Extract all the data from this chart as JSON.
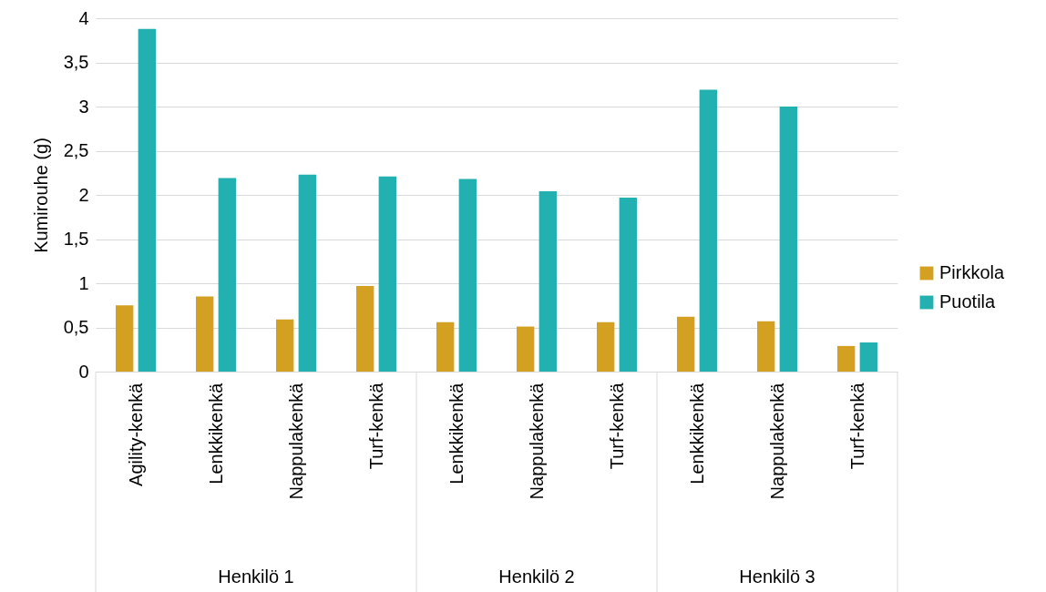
{
  "chart_data": {
    "type": "bar",
    "ylabel": "Kumirouhe (g)",
    "categories": [
      "Agility-kenkä",
      "Lenkkikenkä",
      "Nappulakenkä",
      "Turf-kenkä",
      "Lenkkikenkä",
      "Nappulakenkä",
      "Turf-kenkä",
      "Lenkkikenkä",
      "Nappulakenkä",
      "Turf-kenkä"
    ],
    "series": [
      {
        "name": "Pirkkola",
        "color": "#d4a021",
        "values": [
          0.75,
          0.85,
          0.59,
          0.97,
          0.56,
          0.51,
          0.56,
          0.62,
          0.57,
          0.29
        ]
      },
      {
        "name": "Puotila",
        "color": "#23b0b0",
        "values": [
          3.88,
          2.19,
          2.23,
          2.21,
          2.18,
          2.04,
          1.97,
          3.19,
          3.0,
          0.33
        ]
      }
    ],
    "annotations": [
      "Henkilö 1",
      "Henkilö 2",
      "Henkilö 3"
    ],
    "ylim": [
      0,
      4
    ],
    "yticks": [
      0,
      {
        "value": 0.5,
        "label": "0,5"
      },
      1,
      {
        "value": 1.5,
        "label": "1,5"
      },
      2,
      {
        "value": 2.5,
        "label": "2,5"
      },
      3,
      {
        "value": 3.5,
        "label": "3,5"
      },
      4
    ],
    "grid": "y",
    "legend": "right"
  }
}
